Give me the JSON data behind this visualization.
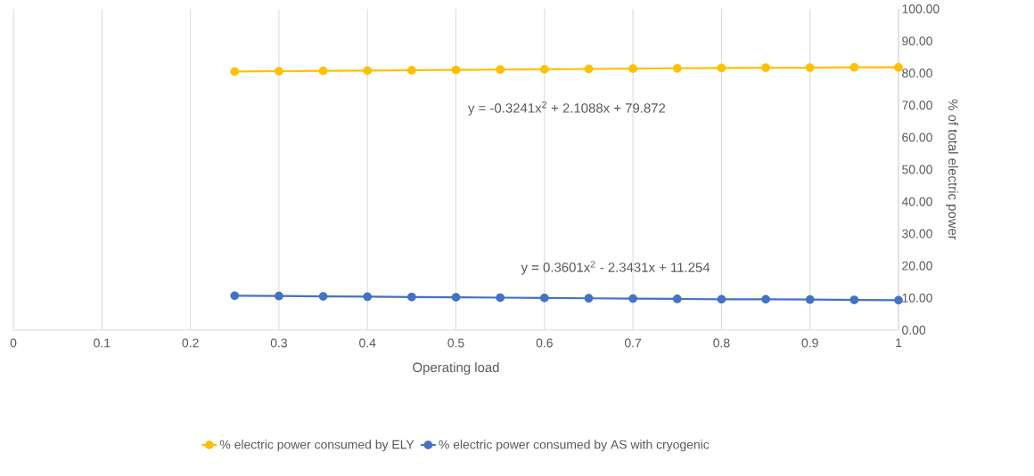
{
  "chart_data": {
    "type": "line",
    "xlabel": "Operating load",
    "ylabel": "% of total electric power",
    "x": [
      0.25,
      0.3,
      0.35,
      0.4,
      0.45,
      0.5,
      0.55,
      0.6,
      0.65,
      0.7,
      0.75,
      0.8,
      0.85,
      0.9,
      0.95,
      1
    ],
    "series": [
      {
        "name": "% electric power consumed by ELY",
        "color": "#ffc000",
        "values": [
          80.5,
          80.6,
          80.7,
          80.8,
          80.9,
          81.0,
          81.1,
          81.2,
          81.3,
          81.4,
          81.5,
          81.6,
          81.7,
          81.7,
          81.8,
          81.8
        ]
      },
      {
        "name": "% electric power consumed by AS with cryogenic",
        "color": "#4472c4",
        "values": [
          10.7,
          10.6,
          10.5,
          10.4,
          10.3,
          10.2,
          10.1,
          10.0,
          9.9,
          9.8,
          9.7,
          9.6,
          9.6,
          9.5,
          9.4,
          9.3
        ]
      }
    ],
    "annotations": [
      "y = -0.3241x$^{2}$ + 2.1088x + 79.872",
      "y = 0.3601x$^{2}$ - 2.3431x + 11.254"
    ],
    "xlim": [
      0,
      1
    ],
    "xticks": [
      0,
      0.1,
      0.2,
      0.3,
      0.4,
      0.5,
      0.6,
      0.7,
      0.8,
      0.9,
      1
    ],
    "ylim": [
      0,
      100
    ],
    "yticks": [
      {
        "value": 0,
        "label": "0.00"
      },
      {
        "value": 10,
        "label": "10.00"
      },
      {
        "value": 20,
        "label": "20.00"
      },
      {
        "value": 30,
        "label": "30.00"
      },
      {
        "value": 40,
        "label": "40.00"
      },
      {
        "value": 50,
        "label": "50.00"
      },
      {
        "value": 60,
        "label": "60.00"
      },
      {
        "value": 70,
        "label": "70.00"
      },
      {
        "value": 80,
        "label": "80.00"
      },
      {
        "value": 90,
        "label": "90.00"
      },
      {
        "value": 100,
        "label": "100.00"
      }
    ],
    "grid": "x",
    "legend": "bottom",
    "marker": "circle",
    "line_style": "solid"
  }
}
